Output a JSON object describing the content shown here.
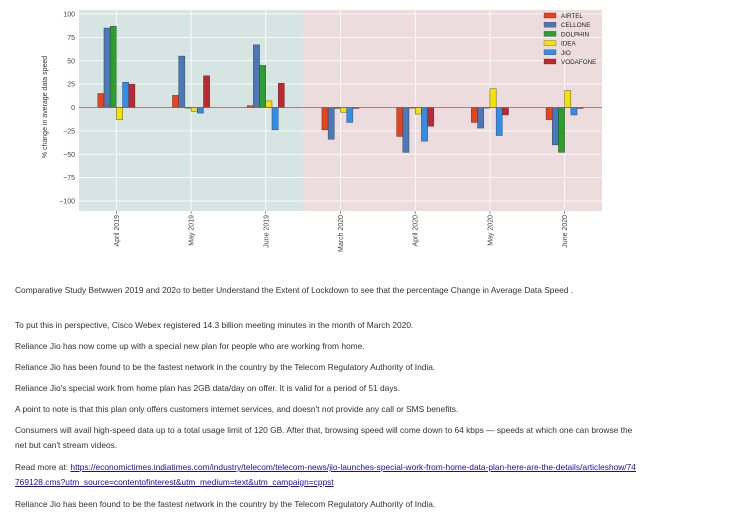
{
  "chart_data": {
    "type": "bar",
    "ylabel": "% change in average data speed",
    "ylim": [
      -100,
      100
    ],
    "yticks": [
      100,
      75,
      50,
      25,
      0,
      -25,
      -50,
      -75,
      -100
    ],
    "categories": [
      "April 2019",
      "May 2019",
      "June 2019",
      "March 2020",
      "April 2020",
      "May 2020",
      "June 2020"
    ],
    "series": [
      {
        "name": "AIRTEL",
        "color": "#e8431a",
        "values": [
          15,
          13,
          2,
          -24,
          -31,
          -16,
          -13
        ]
      },
      {
        "name": "CELLONE",
        "color": "#4a78b8",
        "values": [
          85,
          55,
          67,
          -34,
          -48,
          -22,
          -40
        ]
      },
      {
        "name": "DOLPHIN",
        "color": "#2ca02c",
        "values": [
          87,
          0,
          45,
          -1,
          0,
          0,
          -48
        ]
      },
      {
        "name": "IDEA",
        "color": "#f5e200",
        "values": [
          -13,
          -4,
          7,
          -5,
          -7,
          20,
          18
        ]
      },
      {
        "name": "JIO",
        "color": "#2f8fe8",
        "values": [
          27,
          -6,
          -24,
          -16,
          -36,
          -30,
          -8
        ]
      },
      {
        "name": "VODAFONE",
        "color": "#c0282d",
        "values": [
          25,
          34,
          26,
          -1,
          -20,
          -8,
          -1
        ]
      }
    ],
    "regions": [
      {
        "from": "April 2019",
        "to": "June 2019",
        "color": "#d6e5e1"
      },
      {
        "from": "March 2020",
        "to": "June 2020",
        "color": "#ecdcdd"
      }
    ],
    "legend": "top-right"
  },
  "paragraphs": [
    "Comparative Study Betwwen 2019 and 202o to better Understand the Extent of Lockdown to see that the percentage Change in Average Data Speed .",
    "To put this in perspective, Cisco Webex registered 14.3 billion meeting minutes in the month of March 2020.",
    "Reliance Jio has now come up with a special new plan for people who are working from home.",
    "Reliance Jio has been found to be the fastest network in the country by the Telecom Regulatory Authority of India.",
    "Reliance Jio's special work from home plan has 2GB data/day on offer. It is valid for a period of 51 days.",
    "A point to note is that this plan only offers customers internet services, and doesn't not provide any call or SMS benefits.",
    "Consumers will avail high-speed data up to a total usage limit of 120 GB. After that, browsing speed will come down to 64 kbps — speeds at which one can browse the net but can't stream videos."
  ],
  "read_more": {
    "prefix": "Read more at: ",
    "url": "https://economictimes.indiatimes.com/industry/telecom/telecom-news/jio-launches-special-work-from-home-data-plan-here-are-the-details/articleshow/74769128.cms?utm_source=contentofinterest&utm_medium=text&utm_campaign=cppst"
  },
  "closing": "Reliance Jio has been found to be the fastest network in the country by the Telecom Regulatory Authority of India."
}
